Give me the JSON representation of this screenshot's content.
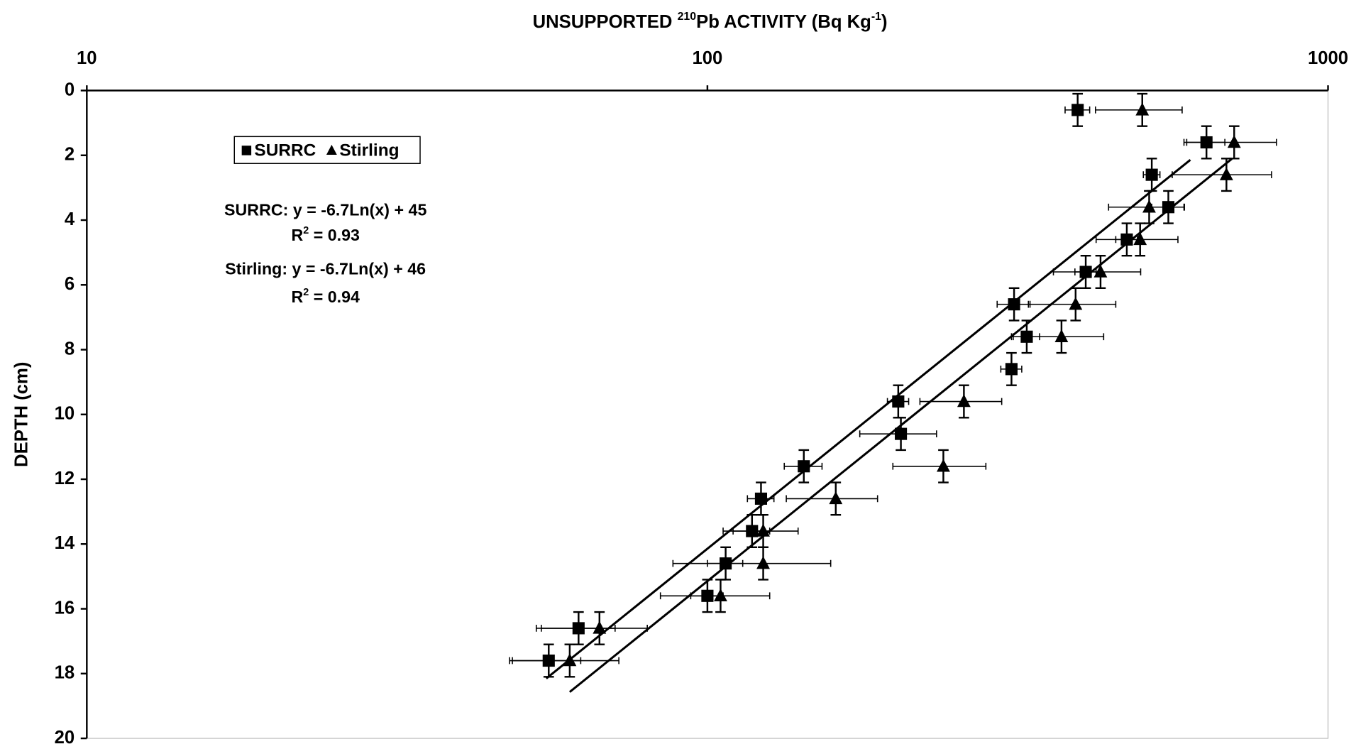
{
  "chart_data": {
    "type": "scatter",
    "title": [
      {
        "text": "UNSUPPORTED "
      },
      {
        "text": "210",
        "sup": true
      },
      {
        "text": "Pb ACTIVITY (Bq Kg"
      },
      {
        "text": "-1",
        "sup": true
      },
      {
        "text": ")"
      }
    ],
    "y_label": "DEPTH (cm)",
    "x_log": true,
    "y_inverted": true,
    "xlim": [
      10,
      1000
    ],
    "xticks": [
      10,
      100,
      1000
    ],
    "ylim": [
      0,
      20
    ],
    "yticks": [
      0,
      2,
      4,
      6,
      8,
      10,
      12,
      14,
      16,
      18,
      20
    ],
    "legend": "upper left",
    "series": [
      {
        "name": "SURRC",
        "marker": "square",
        "color": "#000000",
        "x": [
          395,
          637,
          520,
          553,
          474,
          407,
          312,
          327,
          309,
          203,
          205,
          143,
          122,
          118,
          107,
          100,
          62,
          55.5
        ],
        "values": [
          0.6,
          1.6,
          2.6,
          3.6,
          4.6,
          5.6,
          6.6,
          7.6,
          8.6,
          9.6,
          10.6,
          11.6,
          12.6,
          13.6,
          14.6,
          15.6,
          16.6,
          17.6
        ],
        "xerr": [
          18,
          45,
          16,
          33,
          19,
          16,
          19,
          16,
          12,
          8,
          29,
          10,
          6,
          8,
          7,
          6,
          9,
          7
        ],
        "yerr": 0.5,
        "trend": {
          "slope": -6.7,
          "intercept": 45,
          "x_range": [
            55,
            600
          ]
        }
      },
      {
        "name": "Stirling",
        "marker": "triangle",
        "color": "#000000",
        "x": [
          502,
          706,
          686,
          515,
          498,
          430,
          392,
          372,
          259,
          240,
          161,
          123,
          123,
          105,
          67,
          60
        ],
        "values": [
          0.6,
          1.6,
          2.6,
          3.6,
          4.6,
          5.6,
          6.6,
          7.6,
          9.6,
          11.6,
          12.6,
          13.6,
          14.6,
          15.6,
          16.6,
          17.6
        ],
        "xerr": [
          80,
          120,
          125,
          72,
          75,
          69,
          63,
          63,
          39,
          41,
          27,
          17,
          35,
          21,
          13,
          12
        ],
        "yerr": 0.5,
        "trend": {
          "slope": -6.7,
          "intercept": 46,
          "x_range": [
            60,
            700
          ]
        }
      }
    ],
    "annotations": [
      [
        {
          "text": "SURRC: y = -6.7Ln(x) + 45"
        }
      ],
      [
        {
          "text": "R"
        },
        {
          "text": "2",
          "sup": true
        },
        {
          "text": " = 0.93"
        }
      ],
      [
        {
          "text": "Stirling: y = -6.7Ln(x) + 46"
        }
      ],
      [
        {
          "text": "R"
        },
        {
          "text": "2",
          "sup": true
        },
        {
          "text": " = 0.94"
        }
      ]
    ]
  }
}
